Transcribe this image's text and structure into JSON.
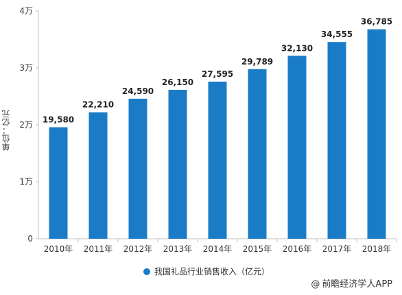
{
  "chart_data": {
    "type": "bar",
    "categories": [
      "2010年",
      "2011年",
      "2012年",
      "2013年",
      "2014年",
      "2015年",
      "2016年",
      "2017年",
      "2018年"
    ],
    "series": [
      {
        "name": "我国礼品行业销售收入（亿元）",
        "values": [
          19580,
          22210,
          24590,
          26150,
          27595,
          29789,
          32130,
          34555,
          36785
        ],
        "labels": [
          "19,580",
          "22,210",
          "24,590",
          "26,150",
          "27,595",
          "29,789",
          "32,130",
          "34,555",
          "36,785"
        ],
        "color": "#1a7cc7"
      }
    ],
    "ylim": [
      0,
      40000
    ],
    "yticks": [
      0,
      10000,
      20000,
      30000,
      40000
    ],
    "ytick_labels": [
      "0",
      "1万",
      "2万",
      "3万",
      "4万"
    ],
    "ylabel": "单位：亿元",
    "grid": false,
    "legend": "bottom-center"
  },
  "footer": {
    "credit": "前瞻经济学人APP",
    "symbol": "@"
  },
  "colors": {
    "bar": "#1a7cc7",
    "axis": "#bfbfbf",
    "text": "#333333"
  }
}
